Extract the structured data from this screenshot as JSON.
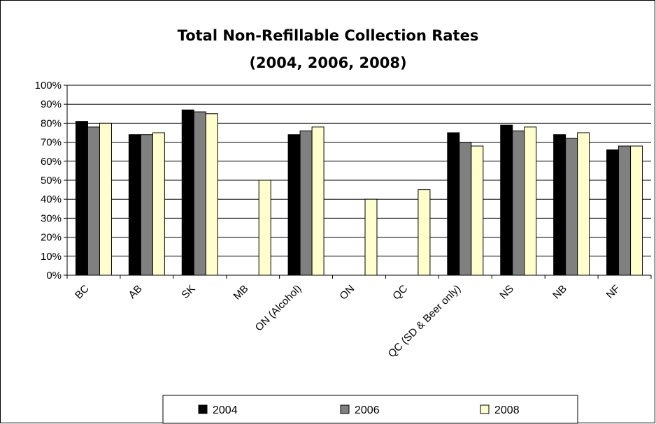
{
  "chart_data": {
    "type": "bar",
    "title": "Total Non-Refillable Collection Rates",
    "subtitle": "(2004, 2006, 2008)",
    "categories": [
      "BC",
      "AB",
      "SK",
      "MB",
      "ON (Alcohol)",
      "ON",
      "QC",
      "QC (SD & Beer only)",
      "NS",
      "NB",
      "NF"
    ],
    "series": [
      {
        "name": "2004",
        "color": "#000000",
        "values": [
          81,
          74,
          87,
          null,
          74,
          null,
          null,
          75,
          79,
          74,
          66
        ]
      },
      {
        "name": "2006",
        "color": "#808080",
        "values": [
          78,
          74,
          86,
          null,
          76,
          null,
          null,
          70,
          76,
          72,
          68
        ]
      },
      {
        "name": "2008",
        "color": "#FFFFCC",
        "values": [
          80,
          75,
          85,
          50,
          78,
          40,
          45,
          68,
          78,
          75,
          68
        ]
      }
    ],
    "ylim": [
      0,
      100
    ],
    "yticks": [
      "0%",
      "10%",
      "20%",
      "30%",
      "40%",
      "50%",
      "60%",
      "70%",
      "80%",
      "90%",
      "100%"
    ],
    "xlabel": "",
    "ylabel": "",
    "grid": true,
    "legend_position": "bottom"
  }
}
